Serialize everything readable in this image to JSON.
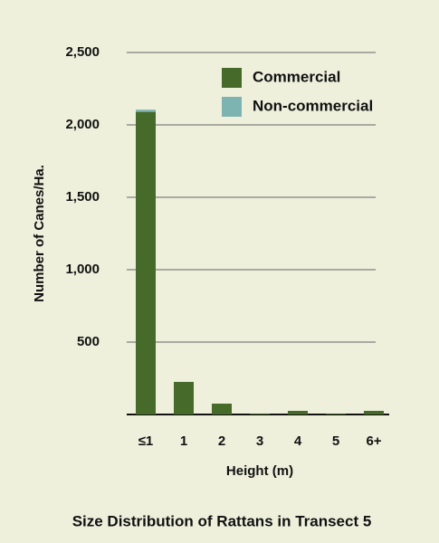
{
  "chart_data": {
    "type": "stacked_bar",
    "title": "Size Distribution of Rattans in Transect 5",
    "x_label": "Height (m)",
    "y_label": "Number of Canes/Ha.",
    "categories": [
      "≤1",
      "1",
      "2",
      "3",
      "4",
      "5",
      "6+"
    ],
    "series": [
      {
        "name": "Commercial",
        "color": "#466a2a",
        "values": [
          2090,
          225,
          75,
          5,
          25,
          5,
          25
        ]
      },
      {
        "name": "Non-commercial",
        "color": "#7db4b2",
        "values": [
          15,
          0,
          0,
          0,
          0,
          0,
          0
        ]
      }
    ],
    "ylim": [
      0,
      2500
    ],
    "yticks": [
      500,
      {
        "value": 1000,
        "label": "1,000"
      },
      {
        "value": 1500,
        "label": "1,500"
      },
      {
        "value": 2000,
        "label": "2,000"
      },
      {
        "value": 2500,
        "label": "2,500"
      }
    ],
    "grid": true,
    "legend": "top-right"
  }
}
